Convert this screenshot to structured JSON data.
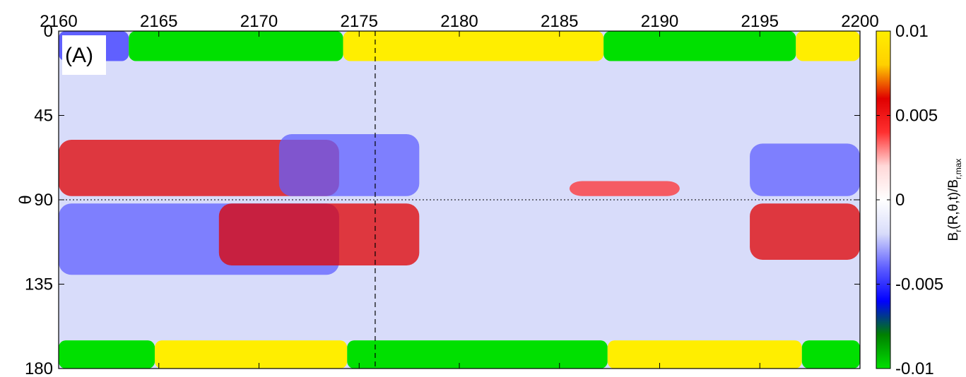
{
  "chart_data": {
    "type": "heatmap",
    "panel_label": "(A)",
    "ylabel": "θ",
    "colorbar_label": {
      "prefix": "B",
      "sub1": "r",
      "middle": "(R,θ,t)/B",
      "sub2": "r,max"
    },
    "x_ticks": [
      "2160",
      "2165",
      "2170",
      "2175",
      "2180",
      "2185",
      "2190",
      "2195",
      "2200"
    ],
    "x_tick_values": [
      2160,
      2165,
      2170,
      2175,
      2180,
      2185,
      2190,
      2195,
      2200
    ],
    "y_ticks": [
      "0",
      "45",
      "90",
      "135",
      "180"
    ],
    "y_tick_values": [
      0,
      45,
      90,
      135,
      180
    ],
    "colorbar_ticks": [
      "0.01",
      "0.005",
      "0",
      "-0.005",
      "-0.01"
    ],
    "colorbar_tick_values": [
      0.01,
      0.005,
      0,
      -0.005,
      -0.01
    ],
    "xlim": [
      2160,
      2200
    ],
    "ylim": [
      0,
      180
    ],
    "y_reversed": true,
    "clim": [
      -0.01,
      0.01
    ],
    "colormap": [
      "#00e000",
      "#008000",
      "#0000ff",
      "#6060ff",
      "#d8dcfa",
      "#ffffff",
      "#ffd8d8",
      "#ff3030",
      "#e00000",
      "#ffd000",
      "#ffee00"
    ],
    "equator_line": {
      "y": 90,
      "style": "dotted"
    },
    "reference_time_line": {
      "x": 2175.8,
      "style": "dashed"
    },
    "polar_caps": {
      "north": [
        {
          "x": [
            2160,
            2163.5
          ],
          "value": -0.005
        },
        {
          "x": [
            2163.5,
            2174.2
          ],
          "value": -0.01
        },
        {
          "x": [
            2174.2,
            2187.2
          ],
          "value": 0.01
        },
        {
          "x": [
            2187.2,
            2196.8
          ],
          "value": -0.01
        },
        {
          "x": [
            2196.8,
            2200
          ],
          "value": 0.01
        }
      ],
      "south": [
        {
          "x": [
            2160,
            2164.8
          ],
          "value": -0.01
        },
        {
          "x": [
            2164.8,
            2174.4
          ],
          "value": 0.01
        },
        {
          "x": [
            2174.4,
            2187.4
          ],
          "value": -0.01
        },
        {
          "x": [
            2187.4,
            2197.1
          ],
          "value": 0.01
        },
        {
          "x": [
            2197.1,
            2200
          ],
          "value": -0.01
        }
      ]
    }
  }
}
